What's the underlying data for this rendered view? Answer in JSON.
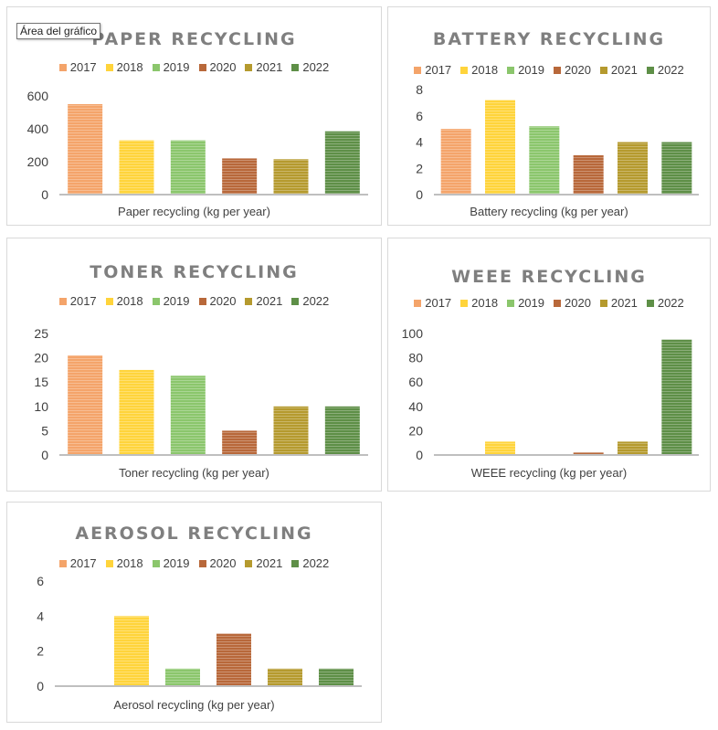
{
  "tooltip": "Área del gráfico",
  "legend_colors": [
    "#f4a46a",
    "#ffd43b",
    "#8bc66c",
    "#b8683a",
    "#b59a2e",
    "#5e8f47"
  ],
  "chart_data": [
    {
      "type": "bar",
      "title": "PAPER RECYCLING",
      "xlabel": "Paper recycling (kg per year)",
      "series": [
        {
          "name": "2017",
          "value": 550
        },
        {
          "name": "2018",
          "value": 330
        },
        {
          "name": "2019",
          "value": 330
        },
        {
          "name": "2020",
          "value": 220
        },
        {
          "name": "2021",
          "value": 215
        },
        {
          "name": "2022",
          "value": 385
        }
      ],
      "ylim": [
        0,
        600
      ],
      "yticks": [
        0,
        200,
        400,
        600
      ]
    },
    {
      "type": "bar",
      "title": "BATTERY RECYCLING",
      "xlabel": "Battery recycling (kg per year)",
      "series": [
        {
          "name": "2017",
          "value": 5
        },
        {
          "name": "2018",
          "value": 7.2
        },
        {
          "name": "2019",
          "value": 5.2
        },
        {
          "name": "2020",
          "value": 3
        },
        {
          "name": "2021",
          "value": 4
        },
        {
          "name": "2022",
          "value": 4
        }
      ],
      "ylim": [
        0,
        8
      ],
      "yticks": [
        0,
        2,
        4,
        6,
        8
      ]
    },
    {
      "type": "bar",
      "title": "TONER RECYCLING",
      "xlabel": "Toner recycling (kg per year)",
      "series": [
        {
          "name": "2017",
          "value": 20.5
        },
        {
          "name": "2018",
          "value": 17.5
        },
        {
          "name": "2019",
          "value": 16.3
        },
        {
          "name": "2020",
          "value": 5
        },
        {
          "name": "2021",
          "value": 10
        },
        {
          "name": "2022",
          "value": 10
        }
      ],
      "ylim": [
        0,
        25
      ],
      "yticks": [
        0,
        5,
        10,
        15,
        20,
        25
      ]
    },
    {
      "type": "bar",
      "title": "WEEE RECYCLING",
      "xlabel": "WEEE recycling (kg per year)",
      "series": [
        {
          "name": "2017",
          "value": 0
        },
        {
          "name": "2018",
          "value": 11
        },
        {
          "name": "2019",
          "value": 0
        },
        {
          "name": "2020",
          "value": 2
        },
        {
          "name": "2021",
          "value": 11
        },
        {
          "name": "2022",
          "value": 95
        }
      ],
      "ylim": [
        0,
        100
      ],
      "yticks": [
        0,
        20,
        40,
        60,
        80,
        100
      ]
    },
    {
      "type": "bar",
      "title": "AEROSOL RECYCLING",
      "xlabel": "Aerosol recycling (kg per year)",
      "series": [
        {
          "name": "2017",
          "value": 0
        },
        {
          "name": "2018",
          "value": 4
        },
        {
          "name": "2019",
          "value": 1
        },
        {
          "name": "2020",
          "value": 3
        },
        {
          "name": "2021",
          "value": 1
        },
        {
          "name": "2022",
          "value": 1
        }
      ],
      "ylim": [
        0,
        6
      ],
      "yticks": [
        0,
        2,
        4,
        6
      ]
    }
  ]
}
